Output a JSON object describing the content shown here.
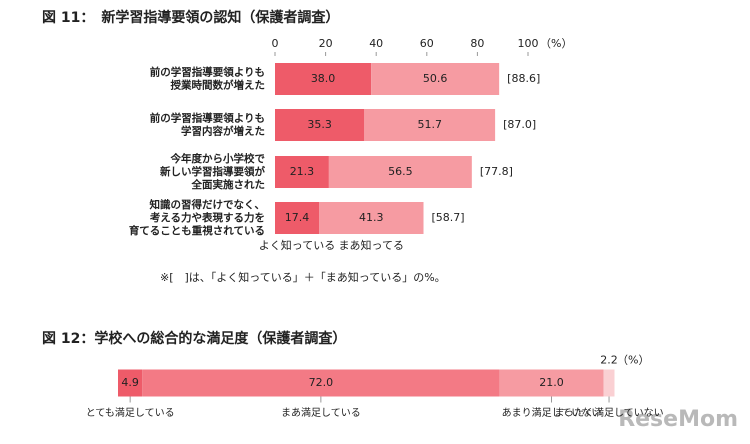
{
  "charts": [
    {
      "chart_data": {
        "type": "stacked-bar",
        "orientation": "horizontal",
        "title": "図 11：　新学習指導要領の認知（保護者調査）",
        "unit": "（%）",
        "categories": [
          "前の学習指導要領よりも\n授業時間数が増えた",
          "前の学習指導要領よりも\n学習内容が増えた",
          "今年度から小学校で\n新しい学習指導要領が\n全面実施された",
          "知識の習得だけでなく、\n考える力や表現する力を\n育てることも重視されている"
        ],
        "series": [
          {
            "name": "よく知っている",
            "color": "#ee5b69",
            "values": [
              38.0,
              35.3,
              21.3,
              17.4
            ],
            "value_labels": [
              "38.0",
              "35.3",
              "21.3",
              "17.4"
            ]
          },
          {
            "name": "まあ知ってる",
            "color": "#f69ba2",
            "values": [
              50.6,
              51.7,
              56.5,
              41.3
            ],
            "value_labels": [
              "50.6",
              "51.7",
              "56.5",
              "41.3"
            ]
          }
        ],
        "totals": [
          88.6,
          87.0,
          77.8,
          58.7
        ],
        "total_labels": [
          "[88.6]",
          "[87.0]",
          "[77.8]",
          "[58.7]"
        ],
        "xlim": [
          0,
          100
        ],
        "xticks": [
          0,
          20,
          40,
          60,
          80,
          100
        ],
        "note": "※[　]は、「よく知っている」＋「まあ知っている」の%。"
      }
    },
    {
      "chart_data": {
        "type": "stacked-bar",
        "orientation": "horizontal",
        "title": "図 12：学校への総合的な満足度（保護者調査）",
        "unit": "（%）",
        "series": [
          {
            "name": "とても満足している",
            "color": "#ee5b69",
            "values": [
              4.9
            ],
            "value_labels": [
              "4.9"
            ]
          },
          {
            "name": "まあ満足している",
            "color": "#f37a85",
            "values": [
              72.0
            ],
            "value_labels": [
              "72.0"
            ]
          },
          {
            "name": "あまり満足していない",
            "color": "#f69ba2",
            "values": [
              21.0
            ],
            "value_labels": [
              "21.0"
            ]
          },
          {
            "name": "まったく満足していない",
            "color": "#fad0d3",
            "values": [
              2.2
            ],
            "value_labels": [
              "2.2"
            ]
          }
        ],
        "xlim": [
          0,
          100
        ]
      }
    }
  ],
  "watermark": "ReseMom"
}
